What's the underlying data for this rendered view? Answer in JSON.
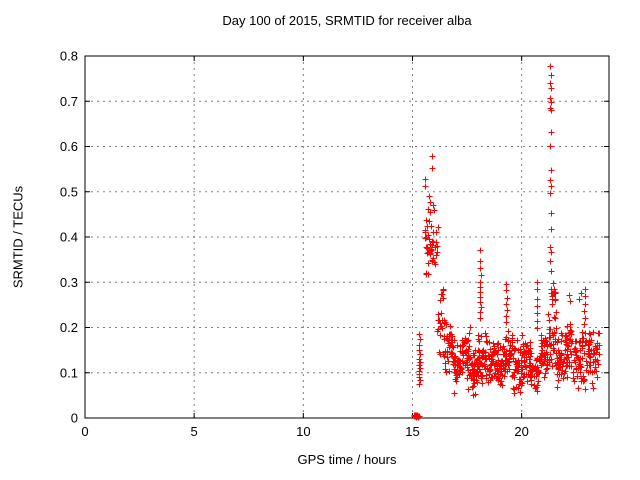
{
  "window": {
    "background": "#ffffff"
  },
  "chart_data": {
    "type": "scatter",
    "title": "Day 100 of 2015, SRMTID for receiver alba",
    "xlabel": "GPS time / hours",
    "ylabel": "SRMTID / TECUs",
    "xlim": [
      0,
      24
    ],
    "ylim": [
      0,
      0.8
    ],
    "xticks": [
      0,
      5,
      10,
      15,
      20
    ],
    "yticks": [
      0,
      0.1,
      0.2,
      0.3,
      0.4,
      0.5,
      0.6,
      0.7,
      0.8
    ],
    "grid": true,
    "legend": false,
    "marker": "plus",
    "marker_color": "#ff0000",
    "grid_color": "#808080",
    "border_color": "#000000",
    "text_color": "#000000",
    "series": [
      {
        "name": "SRMTID",
        "points": [
          [
            15.3,
            0.186
          ],
          [
            15.34,
            0.174
          ],
          [
            15.28,
            0.161
          ],
          [
            15.32,
            0.151
          ],
          [
            15.36,
            0.142
          ],
          [
            15.29,
            0.131
          ],
          [
            15.33,
            0.124
          ],
          [
            15.31,
            0.117
          ],
          [
            15.35,
            0.11
          ],
          [
            15.28,
            0.104
          ],
          [
            15.32,
            0.097
          ],
          [
            15.3,
            0.09
          ],
          [
            15.34,
            0.083
          ],
          [
            15.31,
            0.076
          ],
          [
            15.88,
            0.578
          ],
          [
            15.89,
            0.552
          ],
          [
            15.55,
            0.528
          ],
          [
            15.57,
            0.512
          ],
          [
            15.74,
            0.49
          ],
          [
            15.82,
            0.477
          ],
          [
            15.93,
            0.47
          ],
          [
            15.7,
            0.462
          ],
          [
            15.78,
            0.455
          ],
          [
            18.08,
            0.371
          ],
          [
            18.11,
            0.347
          ],
          [
            18.07,
            0.331
          ],
          [
            18.12,
            0.316
          ],
          [
            18.09,
            0.301
          ],
          [
            18.08,
            0.29
          ],
          [
            18.11,
            0.279
          ],
          [
            18.07,
            0.268
          ],
          [
            18.1,
            0.256
          ],
          [
            18.12,
            0.245
          ],
          [
            18.08,
            0.235
          ],
          [
            18.1,
            0.222
          ],
          [
            19.28,
            0.296
          ],
          [
            19.3,
            0.282
          ],
          [
            19.32,
            0.266
          ],
          [
            19.29,
            0.251
          ],
          [
            19.31,
            0.239
          ],
          [
            19.3,
            0.226
          ],
          [
            19.28,
            0.213
          ],
          [
            20.68,
            0.301
          ],
          [
            20.71,
            0.284
          ],
          [
            20.69,
            0.262
          ],
          [
            20.72,
            0.247
          ],
          [
            20.7,
            0.231
          ],
          [
            20.68,
            0.215
          ],
          [
            20.71,
            0.199
          ],
          [
            21.32,
            0.779
          ],
          [
            21.34,
            0.758
          ],
          [
            21.31,
            0.741
          ],
          [
            21.33,
            0.729
          ],
          [
            21.32,
            0.708
          ],
          [
            21.34,
            0.699
          ],
          [
            21.31,
            0.686
          ],
          [
            21.35,
            0.681
          ],
          [
            21.33,
            0.631
          ],
          [
            21.32,
            0.601
          ],
          [
            21.34,
            0.549
          ],
          [
            21.31,
            0.527
          ],
          [
            21.33,
            0.512
          ],
          [
            21.32,
            0.498
          ],
          [
            21.34,
            0.454
          ],
          [
            21.33,
            0.417
          ],
          [
            21.31,
            0.379
          ],
          [
            21.34,
            0.366
          ],
          [
            21.32,
            0.346
          ],
          [
            21.33,
            0.324
          ],
          [
            22.15,
            0.272
          ],
          [
            22.2,
            0.258
          ],
          [
            22.7,
            0.276
          ],
          [
            22.64,
            0.262
          ],
          [
            22.88,
            0.284
          ],
          [
            22.92,
            0.269
          ],
          [
            22.9,
            0.252
          ],
          [
            22.86,
            0.237
          ],
          [
            22.91,
            0.222
          ],
          [
            22.87,
            0.207
          ]
        ],
        "clusters": [
          [
            15.08,
            15.32,
            0.001,
            0.009,
            16
          ],
          [
            15.55,
            16.15,
            0.285,
            0.47,
            44
          ],
          [
            16.1,
            16.5,
            0.13,
            0.3,
            26
          ],
          [
            16.45,
            16.85,
            0.09,
            0.215,
            36
          ],
          [
            16.85,
            17.25,
            0.05,
            0.185,
            40
          ],
          [
            17.25,
            17.65,
            0.06,
            0.205,
            42
          ],
          [
            17.65,
            18.0,
            0.04,
            0.165,
            40
          ],
          [
            18.0,
            18.4,
            0.065,
            0.2,
            40
          ],
          [
            18.4,
            18.8,
            0.05,
            0.19,
            42
          ],
          [
            18.8,
            19.2,
            0.055,
            0.17,
            42
          ],
          [
            19.2,
            19.6,
            0.075,
            0.205,
            42
          ],
          [
            19.6,
            20.0,
            0.05,
            0.18,
            42
          ],
          [
            20.0,
            20.4,
            0.065,
            0.2,
            40
          ],
          [
            20.4,
            20.8,
            0.04,
            0.17,
            38
          ],
          [
            20.8,
            21.2,
            0.075,
            0.215,
            38
          ],
          [
            21.2,
            21.6,
            0.1,
            0.25,
            36
          ],
          [
            21.28,
            21.55,
            0.24,
            0.31,
            14
          ],
          [
            21.6,
            22.0,
            0.06,
            0.19,
            38
          ],
          [
            22.0,
            22.4,
            0.08,
            0.22,
            38
          ],
          [
            22.4,
            22.8,
            0.05,
            0.2,
            38
          ],
          [
            22.8,
            23.25,
            0.055,
            0.23,
            34
          ],
          [
            23.25,
            23.6,
            0.06,
            0.22,
            22
          ]
        ]
      }
    ]
  }
}
